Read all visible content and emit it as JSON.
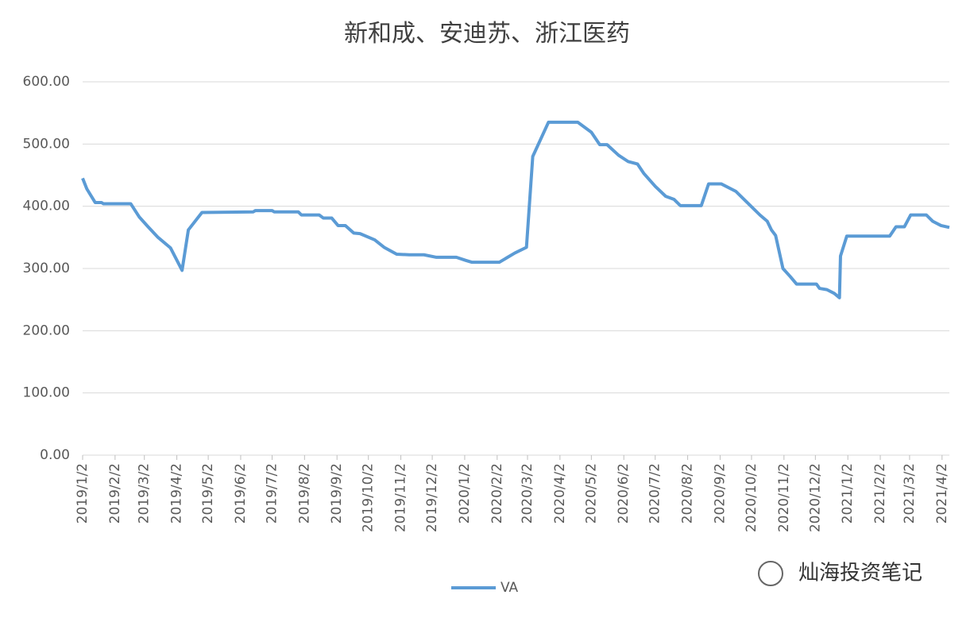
{
  "chart_data": {
    "type": "line",
    "title": "新和成、安迪苏、浙江医药",
    "x": [
      "2019/1/2",
      "2019/1/6",
      "2019/1/14",
      "2019/1/20",
      "2019/1/22",
      "2019/2/17",
      "2019/2/25",
      "2019/3/5",
      "2019/3/15",
      "2019/3/27",
      "2019/4/7",
      "2019/4/13",
      "2019/4/26",
      "2019/6/14",
      "2019/6/16",
      "2019/7/2",
      "2019/7/4",
      "2019/7/27",
      "2019/7/30",
      "2019/8/16",
      "2019/8/20",
      "2019/8/28",
      "2019/9/3",
      "2019/9/10",
      "2019/9/18",
      "2019/9/24",
      "2019/10/8",
      "2019/10/17",
      "2019/10/29",
      "2019/11/10",
      "2019/11/24",
      "2019/12/6",
      "2019/12/25",
      "2020/1/3",
      "2020/1/9",
      "2020/2/4",
      "2020/2/19",
      "2020/3/1",
      "2020/3/7",
      "2020/3/22",
      "2020/4/19",
      "2020/5/2",
      "2020/5/10",
      "2020/5/17",
      "2020/5/28",
      "2020/6/6",
      "2020/6/15",
      "2020/6/21",
      "2020/7/2",
      "2020/7/12",
      "2020/7/20",
      "2020/7/26",
      "2020/8/15",
      "2020/8/22",
      "2020/9/3",
      "2020/9/17",
      "2020/10/10",
      "2020/10/17",
      "2020/10/21",
      "2020/10/25",
      "2020/11/1",
      "2020/11/8",
      "2020/11/14",
      "2020/12/3",
      "2020/12/6",
      "2020/12/13",
      "2020/12/20",
      "2020/12/25",
      "2020/12/26",
      "2021/1/1",
      "2021/2/11",
      "2021/2/17",
      "2021/2/25",
      "2021/3/3",
      "2021/3/18",
      "2021/3/24",
      "2021/4/1",
      "2021/4/9"
    ],
    "series": [
      {
        "name": "VA",
        "color": "#5b9bd5",
        "values": [
          445,
          428,
          406,
          406,
          404,
          404,
          383,
          368,
          350,
          333,
          297,
          362,
          390,
          391,
          393,
          393,
          391,
          391,
          386,
          386,
          381,
          381,
          369,
          369,
          357,
          356,
          346,
          334,
          323,
          322,
          322,
          318,
          318,
          313,
          310,
          310,
          325,
          334,
          480,
          535,
          535,
          519,
          499,
          499,
          482,
          472,
          468,
          453,
          432,
          416,
          411,
          401,
          401,
          436,
          436,
          424,
          386,
          376,
          362,
          353,
          300,
          287,
          275,
          275,
          268,
          266,
          260,
          253,
          320,
          352,
          352,
          367,
          367,
          386,
          386,
          376,
          369,
          366
        ]
      }
    ],
    "xlim": [
      "2019/1/2",
      "2021/4/9"
    ],
    "xticks": [
      "2019/1/2",
      "2019/2/2",
      "2019/3/2",
      "2019/4/2",
      "2019/5/2",
      "2019/6/2",
      "2019/7/2",
      "2019/8/2",
      "2019/9/2",
      "2019/10/2",
      "2019/11/2",
      "2019/12/2",
      "2020/1/2",
      "2020/2/2",
      "2020/3/2",
      "2020/4/2",
      "2020/5/2",
      "2020/6/2",
      "2020/7/2",
      "2020/8/2",
      "2020/9/2",
      "2020/10/2",
      "2020/11/2",
      "2020/12/2",
      "2021/1/2",
      "2021/2/2",
      "2021/3/2",
      "2021/4/2"
    ],
    "ylim": [
      0,
      600
    ],
    "yticks": [
      {
        "value": 0,
        "label": "0.00"
      },
      {
        "value": 100,
        "label": "100.00"
      },
      {
        "value": 200,
        "label": "200.00"
      },
      {
        "value": 300,
        "label": "300.00"
      },
      {
        "value": 400,
        "label": "400.00"
      },
      {
        "value": 500,
        "label": "500.00"
      },
      {
        "value": 600,
        "label": "600.00"
      }
    ],
    "grid": true,
    "legend": "bottom",
    "annotation": "灿海投资笔记"
  }
}
